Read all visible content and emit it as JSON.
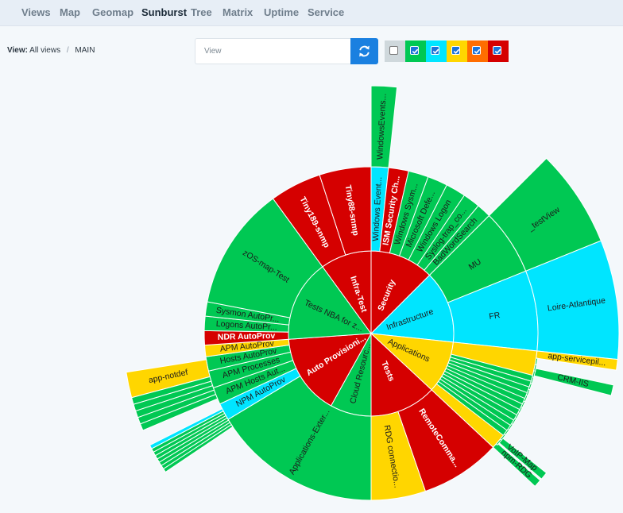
{
  "nav": {
    "items": [
      "Views",
      "Map",
      "Geomap",
      "Sunburst",
      "Tree",
      "Matrix",
      "Uptime",
      "Service"
    ],
    "active": "Sunburst"
  },
  "breadcrumb": {
    "prefix": "View:",
    "items": [
      "All views",
      "MAIN"
    ]
  },
  "search": {
    "placeholder": "View"
  },
  "status_filters": [
    {
      "color": "#cfd8dc",
      "checked": false
    },
    {
      "color": "#00c853",
      "checked": true
    },
    {
      "color": "#00e5ff",
      "checked": true
    },
    {
      "color": "#ffd600",
      "checked": true
    },
    {
      "color": "#ff6d00",
      "checked": true
    },
    {
      "color": "#d50000",
      "checked": true
    }
  ],
  "colors": {
    "green": "#00c853",
    "red": "#d50000",
    "cyan": "#00e5ff",
    "yellow": "#ffd600"
  },
  "sunburst_labels": {
    "ring1": [
      "Security",
      "Infrastructure",
      "Applications",
      "Tests",
      "Cloud Resourc...",
      "Auto Provisioni...",
      "Tests NBA for z...",
      "Infra-Test"
    ],
    "ring2": [
      "Windows Event...",
      "ISM Security Ch...",
      "Windows Sysm...",
      "Microsoft Defe...",
      "Windows Logon",
      "Syslog-trap_co...",
      "BadWordSearch",
      "MU",
      "FR",
      "RemoteComma...",
      "RDG connectio...",
      "Applications-Exter...",
      "NPM AutoProv",
      "APM Hosts Aut...",
      "APM Processes",
      "Hosts AutoProv",
      "APM AutoProv",
      "NDR AutoProv",
      "Logons AutoPr...",
      "Sysmon AutoPr...",
      "zOS-map-Test",
      "Tiny189-snmp",
      "Tiny88-snmp"
    ],
    "ring3": [
      "WindowsEvents...",
      "_testView",
      "Loire-Atlantique",
      "app-servicepil...",
      "CRM-IIS",
      "VoIP-Map",
      "npm-RDG",
      "app-notdef"
    ]
  }
}
